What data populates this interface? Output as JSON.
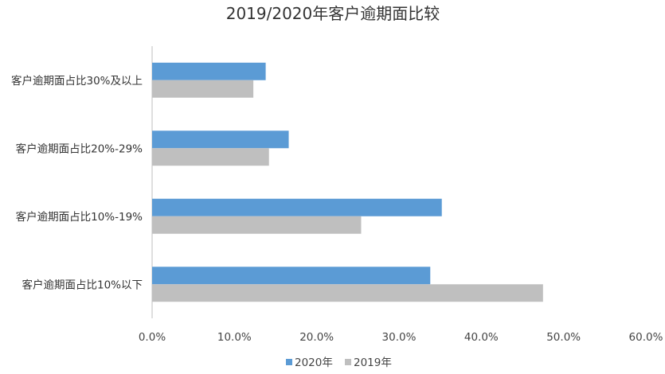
{
  "chart_data": {
    "type": "bar",
    "orientation": "horizontal",
    "title": "2019/2020年客户逾期面比较",
    "categories": [
      "客户逾期面占比30%及以上",
      "客户逾期面占比20%-29%",
      "客户逾期面占比10%-19%",
      "客户逾期面占比10%以下"
    ],
    "series": [
      {
        "name": "2020年",
        "color": "#5b9bd5",
        "values": [
          13.8,
          16.6,
          35.2,
          33.8
        ]
      },
      {
        "name": "2019年",
        "color": "#bfbfbf",
        "values": [
          12.3,
          14.2,
          25.4,
          47.5
        ]
      }
    ],
    "xlim": [
      0,
      60
    ],
    "xticks": [
      "0.0%",
      "10.0%",
      "20.0%",
      "30.0%",
      "40.0%",
      "50.0%",
      "60.0%"
    ],
    "xlabel": "",
    "ylabel": "",
    "grid": false,
    "legend_position": "bottom"
  }
}
